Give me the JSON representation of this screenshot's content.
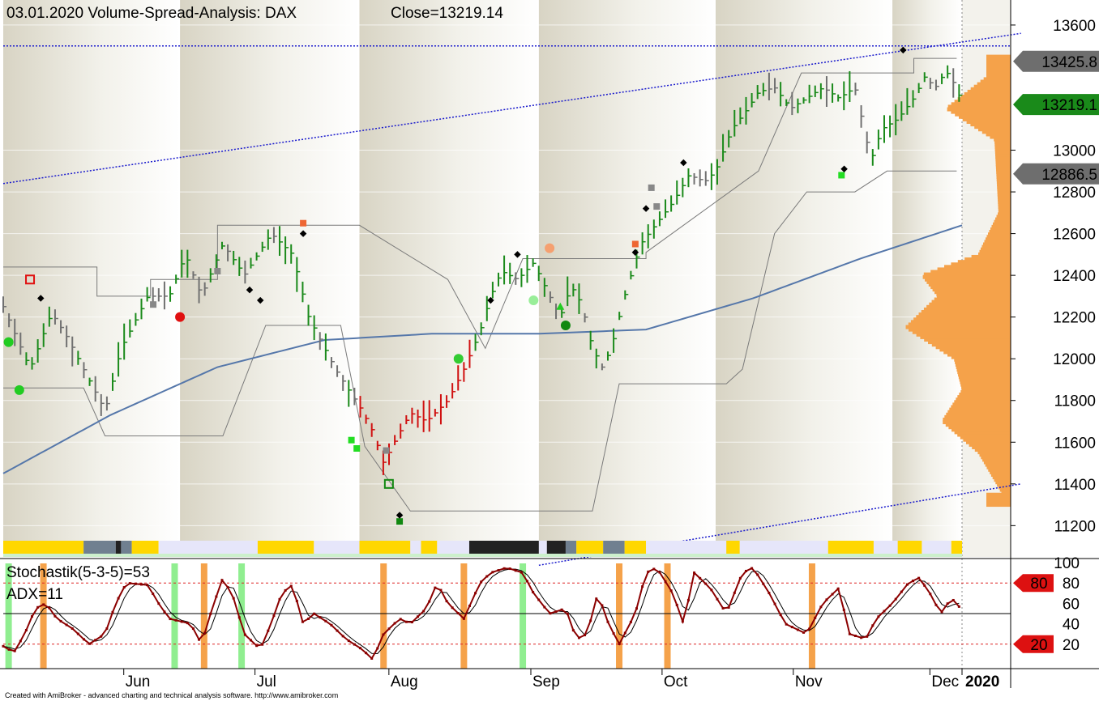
{
  "header": {
    "title": "03.01.2020  Volume-Spread-Analysis: DAX",
    "close_label": "Close=13219.14"
  },
  "footer": {
    "credit": "Created with AmiBroker - advanced charting and technical analysis software. http://www.amibroker.com"
  },
  "colors": {
    "up_bar": "#1a8a1a",
    "down_bar": "#d01010",
    "neutral_bar": "#707070",
    "ma_line": "#5577aa",
    "channel_line": "#1a1acc",
    "profile": "#f5a24a",
    "stoch_line": "#8b0000",
    "stoch_highlight_orange": "#f5a24a",
    "stoch_highlight_green": "#90ee90",
    "price_tag_dark": "#6e6e6e",
    "price_tag_close": "#1a8a1a",
    "level_tag": "#dd1111"
  },
  "chart_data": [
    {
      "type": "candlestick",
      "title": "03.01.2020  Volume-Spread-Analysis: DAX",
      "close": 13219.14,
      "ylim": [
        11050,
        13720
      ],
      "y_ticks": [
        11200,
        11400,
        11600,
        11800,
        12000,
        12200,
        12400,
        12600,
        12800,
        13000,
        13600
      ],
      "x_labels": [
        "Jun",
        "Jul",
        "Aug",
        "Sep",
        "Oct",
        "Nov",
        "Dec",
        "2020"
      ],
      "price_tags": [
        {
          "label": "13425.8",
          "value": 13425.8,
          "style": "dark"
        },
        {
          "label": "13219.1",
          "value": 13219.1,
          "style": "close"
        },
        {
          "label": "12886.5",
          "value": 12886.5,
          "style": "dark"
        }
      ],
      "series_keypoints": {
        "price_path": [
          [
            0,
            12250
          ],
          [
            5,
            12100
          ],
          [
            10,
            11950
          ],
          [
            18,
            12220
          ],
          [
            24,
            12100
          ],
          [
            30,
            11950
          ],
          [
            38,
            11750
          ],
          [
            44,
            12050
          ],
          [
            54,
            12300
          ],
          [
            62,
            12300
          ],
          [
            68,
            12500
          ],
          [
            74,
            12300
          ],
          [
            82,
            12550
          ],
          [
            90,
            12400
          ],
          [
            100,
            12600
          ],
          [
            108,
            12500
          ],
          [
            114,
            12200
          ],
          [
            124,
            11950
          ],
          [
            134,
            11750
          ],
          [
            138,
            11650
          ],
          [
            142,
            11500
          ],
          [
            146,
            11600
          ],
          [
            152,
            11740
          ],
          [
            158,
            11700
          ],
          [
            166,
            11800
          ],
          [
            172,
            11950
          ],
          [
            178,
            12130
          ],
          [
            182,
            12300
          ],
          [
            186,
            12420
          ],
          [
            192,
            12380
          ],
          [
            198,
            12460
          ],
          [
            204,
            12300
          ],
          [
            208,
            12200
          ],
          [
            212,
            12350
          ],
          [
            216,
            12260
          ],
          [
            220,
            12050
          ],
          [
            224,
            11950
          ],
          [
            228,
            12100
          ],
          [
            232,
            12300
          ],
          [
            238,
            12550
          ],
          [
            244,
            12650
          ],
          [
            250,
            12750
          ],
          [
            256,
            12880
          ],
          [
            262,
            12850
          ],
          [
            266,
            12900
          ],
          [
            272,
            13100
          ],
          [
            278,
            13200
          ],
          [
            282,
            13280
          ],
          [
            288,
            13300
          ],
          [
            294,
            13200
          ],
          [
            300,
            13250
          ],
          [
            306,
            13300
          ],
          [
            312,
            13250
          ],
          [
            318,
            13300
          ],
          [
            324,
            12950
          ],
          [
            328,
            13100
          ],
          [
            334,
            13150
          ],
          [
            340,
            13250
          ],
          [
            344,
            13350
          ],
          [
            348,
            13300
          ],
          [
            352,
            13380
          ],
          [
            356,
            13300
          ],
          [
            358,
            13219
          ]
        ],
        "ma_path": [
          [
            0,
            11450
          ],
          [
            40,
            11730
          ],
          [
            80,
            11960
          ],
          [
            120,
            12090
          ],
          [
            160,
            12120
          ],
          [
            200,
            12120
          ],
          [
            240,
            12140
          ],
          [
            280,
            12290
          ],
          [
            320,
            12480
          ],
          [
            358,
            12640
          ]
        ],
        "channel_upper": {
          "from": [
            0,
            12840
          ],
          "to": [
            380,
            13560
          ]
        },
        "channel_lower": {
          "from": [
            200,
            11010
          ],
          "to": [
            380,
            11400
          ]
        },
        "resistance_level": 13500,
        "donchian_high": [
          [
            0,
            12440
          ],
          [
            35,
            12440
          ],
          [
            35,
            12300
          ],
          [
            55,
            12300
          ],
          [
            55,
            12380
          ],
          [
            80,
            12380
          ],
          [
            80,
            12640
          ],
          [
            133,
            12640
          ],
          [
            166,
            12380
          ],
          [
            180,
            12050
          ],
          [
            194,
            12480
          ],
          [
            240,
            12480
          ],
          [
            240,
            12510
          ],
          [
            282,
            12900
          ],
          [
            298,
            13370
          ],
          [
            340,
            13370
          ],
          [
            340,
            13440
          ],
          [
            356,
            13440
          ]
        ],
        "donchian_low": [
          [
            0,
            11860
          ],
          [
            30,
            11860
          ],
          [
            38,
            11630
          ],
          [
            82,
            11630
          ],
          [
            98,
            12160
          ],
          [
            126,
            12160
          ],
          [
            135,
            11580
          ],
          [
            152,
            11270
          ],
          [
            220,
            11270
          ],
          [
            230,
            11880
          ],
          [
            270,
            11880
          ],
          [
            276,
            11950
          ],
          [
            288,
            12600
          ],
          [
            300,
            12800
          ],
          [
            318,
            12800
          ],
          [
            330,
            12900
          ],
          [
            356,
            12900
          ]
        ]
      }
    },
    {
      "type": "line",
      "title": "Stochastik(5-3-5)=53",
      "subtitle": "ADX=11",
      "ylim": [
        0,
        100
      ],
      "y_ticks": [
        20,
        40,
        60,
        80,
        100
      ],
      "levels": [
        {
          "label": "80",
          "value": 80
        },
        {
          "label": "20",
          "value": 20
        }
      ],
      "midline": 50,
      "stoch_keypoints": [
        [
          0,
          18
        ],
        [
          4,
          12
        ],
        [
          8,
          30
        ],
        [
          12,
          55
        ],
        [
          16,
          60
        ],
        [
          20,
          45
        ],
        [
          26,
          35
        ],
        [
          32,
          20
        ],
        [
          38,
          30
        ],
        [
          42,
          60
        ],
        [
          46,
          80
        ],
        [
          54,
          78
        ],
        [
          58,
          60
        ],
        [
          62,
          45
        ],
        [
          70,
          40
        ],
        [
          74,
          20
        ],
        [
          78,
          55
        ],
        [
          82,
          85
        ],
        [
          86,
          65
        ],
        [
          90,
          30
        ],
        [
          96,
          15
        ],
        [
          100,
          40
        ],
        [
          104,
          70
        ],
        [
          108,
          78
        ],
        [
          112,
          40
        ],
        [
          116,
          50
        ],
        [
          122,
          40
        ],
        [
          128,
          25
        ],
        [
          134,
          15
        ],
        [
          138,
          5
        ],
        [
          142,
          30
        ],
        [
          148,
          45
        ],
        [
          152,
          40
        ],
        [
          158,
          55
        ],
        [
          162,
          80
        ],
        [
          166,
          60
        ],
        [
          172,
          45
        ],
        [
          178,
          80
        ],
        [
          182,
          90
        ],
        [
          188,
          95
        ],
        [
          194,
          90
        ],
        [
          198,
          70
        ],
        [
          204,
          50
        ],
        [
          210,
          55
        ],
        [
          214,
          25
        ],
        [
          218,
          30
        ],
        [
          222,
          70
        ],
        [
          226,
          40
        ],
        [
          230,
          20
        ],
        [
          236,
          50
        ],
        [
          240,
          90
        ],
        [
          244,
          95
        ],
        [
          250,
          70
        ],
        [
          254,
          40
        ],
        [
          258,
          90
        ],
        [
          264,
          75
        ],
        [
          270,
          50
        ],
        [
          276,
          90
        ],
        [
          280,
          95
        ],
        [
          286,
          70
        ],
        [
          292,
          40
        ],
        [
          300,
          30
        ],
        [
          306,
          60
        ],
        [
          312,
          75
        ],
        [
          316,
          30
        ],
        [
          322,
          25
        ],
        [
          326,
          45
        ],
        [
          332,
          60
        ],
        [
          338,
          80
        ],
        [
          342,
          85
        ],
        [
          346,
          70
        ],
        [
          350,
          50
        ],
        [
          354,
          65
        ],
        [
          356,
          60
        ],
        [
          358,
          53
        ]
      ],
      "highlight_zones": [
        {
          "kind": "green",
          "at": 2
        },
        {
          "kind": "orange",
          "at": 15
        },
        {
          "kind": "green",
          "at": 64
        },
        {
          "kind": "orange",
          "at": 75
        },
        {
          "kind": "green",
          "at": 89
        },
        {
          "kind": "orange",
          "at": 142
        },
        {
          "kind": "orange",
          "at": 172
        },
        {
          "kind": "green",
          "at": 194
        },
        {
          "kind": "orange",
          "at": 230
        },
        {
          "kind": "orange",
          "at": 248
        },
        {
          "kind": "orange",
          "at": 302
        }
      ]
    }
  ],
  "profile_keypoints": [
    [
      13350,
      30
    ],
    [
      13200,
      80
    ],
    [
      13050,
      20
    ],
    [
      12700,
      15
    ],
    [
      12500,
      40
    ],
    [
      12400,
      110
    ],
    [
      12300,
      90
    ],
    [
      12150,
      130
    ],
    [
      12000,
      70
    ],
    [
      11850,
      60
    ],
    [
      11700,
      85
    ],
    [
      11550,
      40
    ],
    [
      11350,
      10
    ]
  ],
  "vsa_strip": [
    {
      "color": "#ffd700",
      "from": 0,
      "to": 30
    },
    {
      "color": "#708090",
      "from": 30,
      "to": 42
    },
    {
      "color": "#222222",
      "from": 42,
      "to": 44
    },
    {
      "color": "#708090",
      "from": 44,
      "to": 48
    },
    {
      "color": "#ffd700",
      "from": 48,
      "to": 58
    },
    {
      "color": "#e6e6fa",
      "from": 58,
      "to": 95
    },
    {
      "color": "#ffd700",
      "from": 95,
      "to": 116
    },
    {
      "color": "#e6e6fa",
      "from": 116,
      "to": 133
    },
    {
      "color": "#ffd700",
      "from": 133,
      "to": 152
    },
    {
      "color": "#e6e6fa",
      "from": 152,
      "to": 156
    },
    {
      "color": "#ffd700",
      "from": 156,
      "to": 162
    },
    {
      "color": "#e6e6fa",
      "from": 162,
      "to": 174
    },
    {
      "color": "#222222",
      "from": 174,
      "to": 200
    },
    {
      "color": "#e6e6fa",
      "from": 200,
      "to": 203
    },
    {
      "color": "#222222",
      "from": 203,
      "to": 210
    },
    {
      "color": "#708090",
      "from": 210,
      "to": 214
    },
    {
      "color": "#ffd700",
      "from": 214,
      "to": 224
    },
    {
      "color": "#708090",
      "from": 224,
      "to": 232
    },
    {
      "color": "#ffd700",
      "from": 232,
      "to": 240
    },
    {
      "color": "#e6e6fa",
      "from": 240,
      "to": 270
    },
    {
      "color": "#ffd700",
      "from": 270,
      "to": 275
    },
    {
      "color": "#e6e6fa",
      "from": 275,
      "to": 308
    },
    {
      "color": "#ffd700",
      "from": 308,
      "to": 325
    },
    {
      "color": "#e6e6fa",
      "from": 325,
      "to": 334
    },
    {
      "color": "#ffd700",
      "from": 334,
      "to": 343
    },
    {
      "color": "#e6e6fa",
      "from": 343,
      "to": 354
    },
    {
      "color": "#ffd700",
      "from": 354,
      "to": 358
    }
  ]
}
